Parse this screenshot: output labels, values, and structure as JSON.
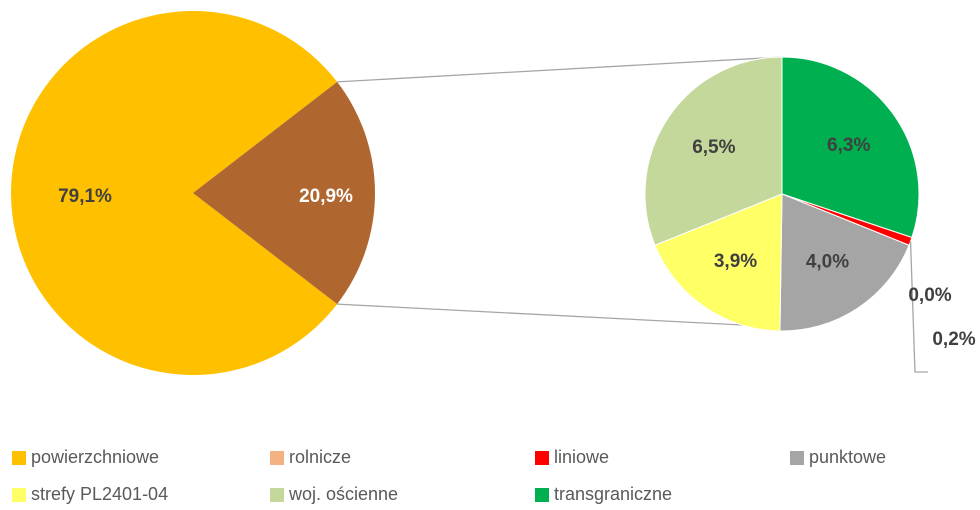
{
  "chart_data": {
    "type": "pie-of-pie",
    "categories": [
      "powierzchniowe",
      "rolnicze",
      "liniowe",
      "punktowe",
      "strefy PL2401-04",
      "woj. ościenne",
      "transgraniczne"
    ],
    "colors": [
      "#FFC000",
      "#F4B183",
      "#FF0000",
      "#A5A5A5",
      "#FFFF66",
      "#C5D89B",
      "#00B050"
    ],
    "values": [
      79.1,
      0.0,
      0.2,
      4.0,
      3.9,
      6.5,
      6.3
    ],
    "value_labels": [
      "79,1%",
      "0,0%",
      "0,2%",
      "4,0%",
      "3,9%",
      "6,5%",
      "6,3%"
    ],
    "other_value": 20.9,
    "other_label": "20,9%",
    "other_color": "#B0672F"
  }
}
